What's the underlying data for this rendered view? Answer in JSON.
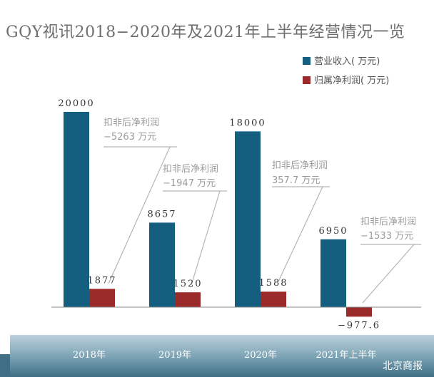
{
  "title": "GQY视讯2018−2020年及2021年上半年经营情况一览",
  "legend": [
    {
      "label": "营业收入( 万元)",
      "color": "#145f7f"
    },
    {
      "label": "归属净利润( 万元)",
      "color": "#9b2a2a"
    }
  ],
  "chart_data": {
    "type": "bar",
    "categories": [
      "2018年",
      "2019年",
      "2020年",
      "2021年上半年"
    ],
    "series": [
      {
        "name": "营业收入( 万元)",
        "values": [
          20000,
          8657,
          18000,
          6950
        ],
        "labels": [
          "20000",
          "8657",
          "18000",
          "6950"
        ],
        "color": "#145f7f"
      },
      {
        "name": "归属净利润( 万元)",
        "values": [
          1877,
          1520,
          1588,
          -977.6
        ],
        "labels": [
          "1877",
          "1520",
          "1588",
          "−977.6"
        ],
        "color": "#9b2a2a"
      }
    ],
    "annotations": [
      {
        "category": "2018年",
        "label": "扣非后净利润",
        "value": "−5263 万元"
      },
      {
        "category": "2019年",
        "label": "扣非后净利润",
        "value": "−1947 万元"
      },
      {
        "category": "2020年",
        "label": "扣非后净利润",
        "value": "357.7 万元"
      },
      {
        "category": "2021年上半年",
        "label": "扣非后净利润",
        "value": "−1533 万元"
      }
    ],
    "ylim": [
      -1200,
      20500
    ]
  },
  "source": "北京商报"
}
